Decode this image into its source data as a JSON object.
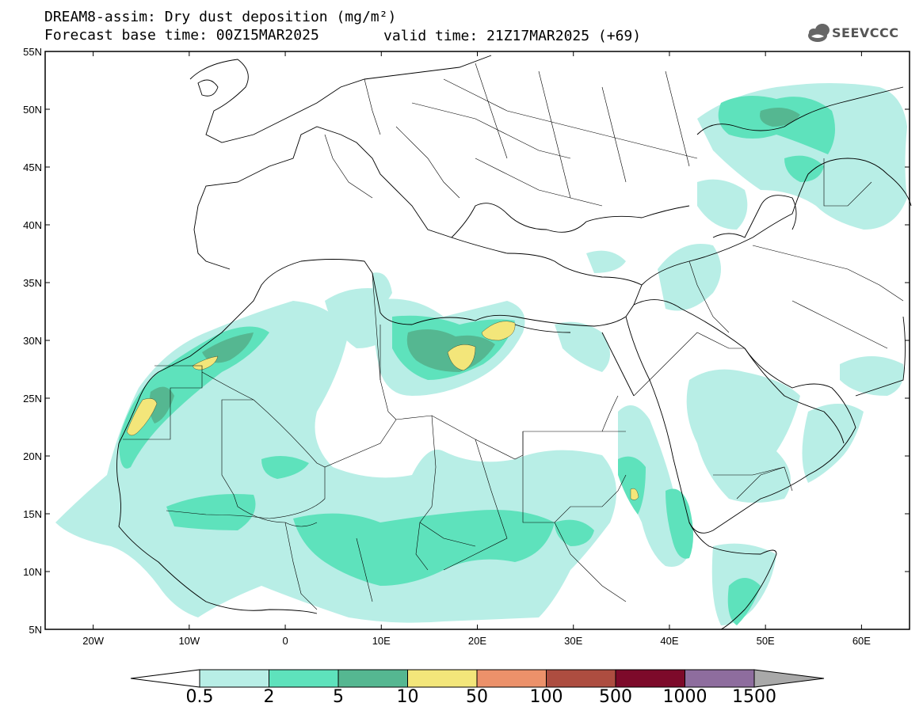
{
  "header": {
    "title_line1": "DREAM8-assim: Dry dust deposition (mg/m²)",
    "title_line2": "Forecast base time: 00Z15MAR2025",
    "valid_time": "valid time: 21Z17MAR2025 (+69)",
    "logo_text": "SEEVCCC",
    "logo_icon": "cloud-icon"
  },
  "map": {
    "lat_labels": [
      "55N",
      "50N",
      "45N",
      "40N",
      "35N",
      "30N",
      "25N",
      "20N",
      "15N",
      "10N",
      "5N"
    ],
    "lon_labels": [
      "20W",
      "10W",
      "0",
      "10E",
      "20E",
      "30E",
      "40E",
      "50E",
      "60E"
    ],
    "extent": {
      "lon_min": -25,
      "lon_max": 65,
      "lat_min": 5,
      "lat_max": 55
    }
  },
  "legend": {
    "labels": [
      "0.5",
      "2",
      "5",
      "10",
      "50",
      "100",
      "500",
      "1000",
      "1500"
    ],
    "colors": [
      "#b8eee6",
      "#5ee2bc",
      "#55b791",
      "#f3e67a",
      "#ec916a",
      "#ad4d40",
      "#7d0a2a",
      "#8e6d9e",
      "#a9a9a9"
    ],
    "under_color": "#ffffff"
  }
}
